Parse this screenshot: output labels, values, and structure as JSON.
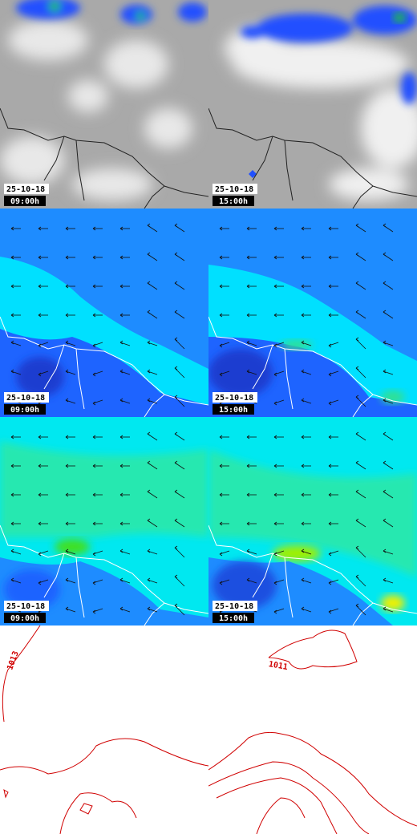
{
  "panels": [
    {
      "date": "25-10-18",
      "time": "09:00h"
    },
    {
      "date": "25-10-18",
      "time": "15:00h"
    },
    {
      "date": "25-10-18",
      "time": "09:00h"
    },
    {
      "date": "25-10-18",
      "time": "15:00h"
    },
    {
      "date": "25-10-18",
      "time": "09:00h"
    },
    {
      "date": "25-10-18",
      "time": "15:00h"
    }
  ],
  "contour_labels": [
    "1013",
    "1011"
  ]
}
